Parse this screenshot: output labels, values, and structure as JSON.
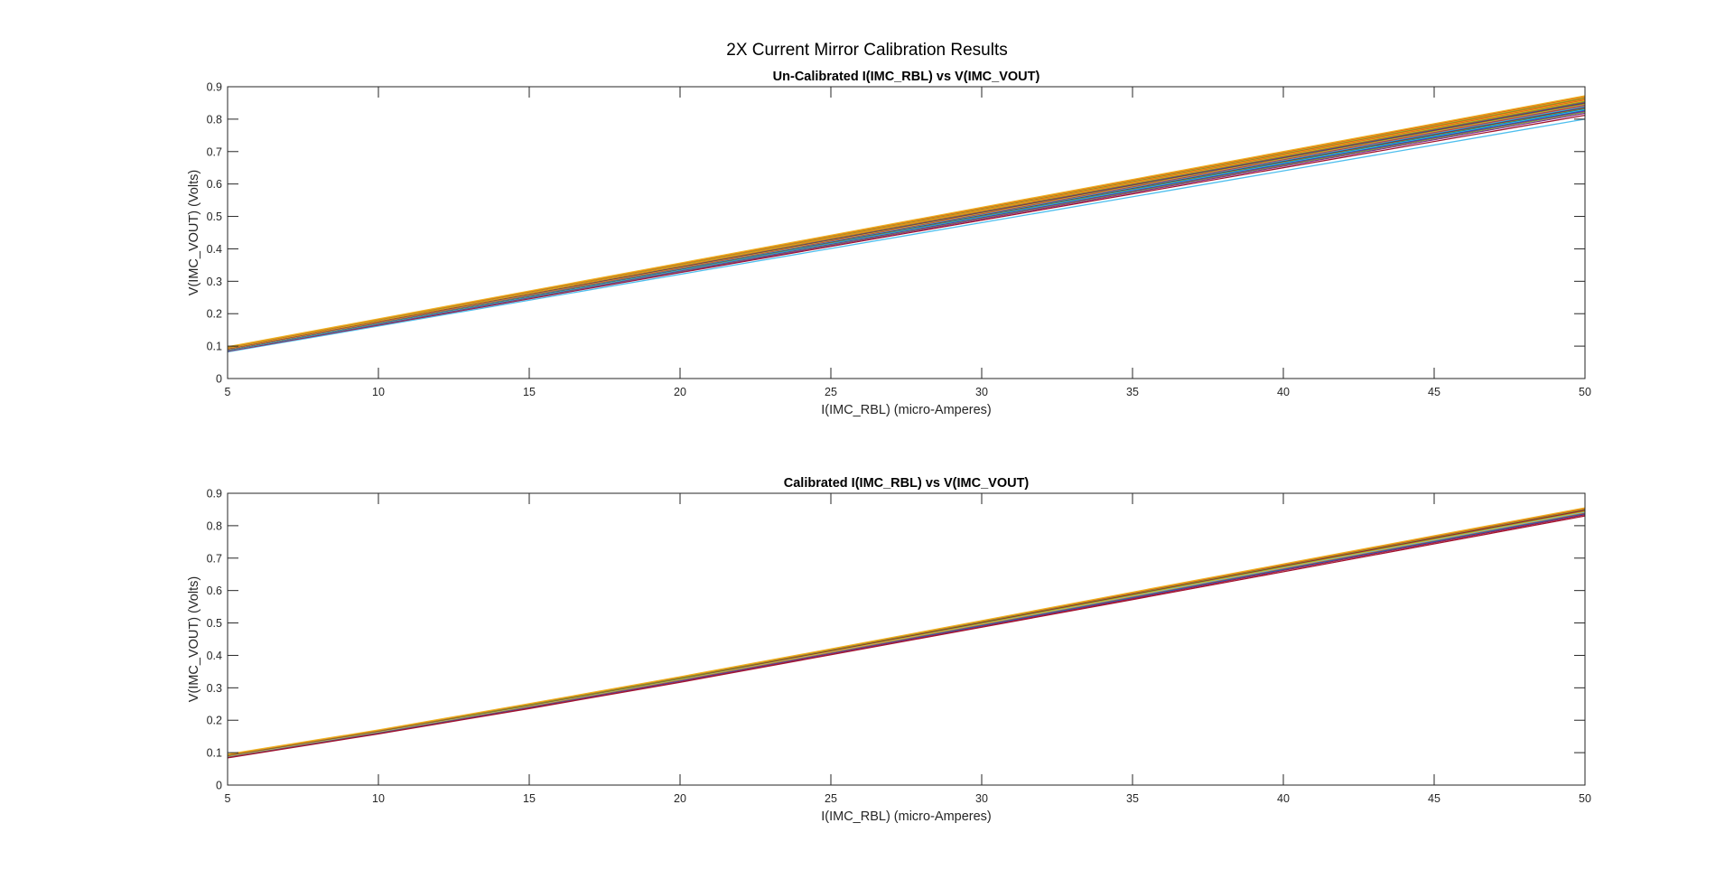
{
  "figure": {
    "title": "2X Current Mirror Calibration Results"
  },
  "series_colors": [
    "#0072BD",
    "#D95319",
    "#EDB120",
    "#7E2F8E",
    "#77AC30",
    "#4DBEEE",
    "#A2142F"
  ],
  "chart_data": [
    {
      "type": "line",
      "title": "Un-Calibrated I(IMC_RBL) vs V(IMC_VOUT)",
      "xlabel": "I(IMC_RBL) (micro-Amperes)",
      "ylabel": "V(IMC_VOUT) (Volts)",
      "xlim": [
        5,
        50
      ],
      "ylim": [
        0,
        0.9
      ],
      "xticks": [
        "5",
        "10",
        "15",
        "20",
        "25",
        "30",
        "35",
        "40",
        "45",
        "50"
      ],
      "yticks": [
        "0",
        "0.1",
        "0.2",
        "0.3",
        "0.4",
        "0.5",
        "0.6",
        "0.7",
        "0.8",
        "0.9"
      ],
      "grid": false,
      "x": [
        5,
        50
      ],
      "series": [
        {
          "values": [
            0.082,
            0.8
          ],
          "color": "#4DBEEE"
        },
        {
          "values": [
            0.084,
            0.812
          ],
          "color": "#A2142F"
        },
        {
          "values": [
            0.085,
            0.818
          ],
          "color": "#7E2F8E"
        },
        {
          "values": [
            0.086,
            0.822
          ],
          "color": "#77AC30"
        },
        {
          "values": [
            0.086,
            0.825
          ],
          "color": "#7E2F8E"
        },
        {
          "values": [
            0.087,
            0.828
          ],
          "color": "#0072BD"
        },
        {
          "values": [
            0.087,
            0.83
          ],
          "color": "#4DBEEE"
        },
        {
          "values": [
            0.088,
            0.832
          ],
          "color": "#0072BD"
        },
        {
          "values": [
            0.088,
            0.834
          ],
          "color": "#77AC30"
        },
        {
          "values": [
            0.089,
            0.836
          ],
          "color": "#A2142F"
        },
        {
          "values": [
            0.089,
            0.838
          ],
          "color": "#0072BD"
        },
        {
          "values": [
            0.09,
            0.84
          ],
          "color": "#4DBEEE"
        },
        {
          "values": [
            0.09,
            0.842
          ],
          "color": "#D95319"
        },
        {
          "values": [
            0.091,
            0.844
          ],
          "color": "#7E2F8E"
        },
        {
          "values": [
            0.091,
            0.846
          ],
          "color": "#EDB120"
        },
        {
          "values": [
            0.092,
            0.848
          ],
          "color": "#77AC30"
        },
        {
          "values": [
            0.092,
            0.85
          ],
          "color": "#A2142F"
        },
        {
          "values": [
            0.093,
            0.852
          ],
          "color": "#0072BD"
        },
        {
          "values": [
            0.093,
            0.854
          ],
          "color": "#D95319"
        },
        {
          "values": [
            0.094,
            0.856
          ],
          "color": "#77AC30"
        },
        {
          "values": [
            0.094,
            0.858
          ],
          "color": "#EDB120"
        },
        {
          "values": [
            0.095,
            0.86
          ],
          "color": "#D95319"
        },
        {
          "values": [
            0.095,
            0.862
          ],
          "color": "#EDB120"
        },
        {
          "values": [
            0.096,
            0.864
          ],
          "color": "#D95319"
        },
        {
          "values": [
            0.096,
            0.866
          ],
          "color": "#77AC30"
        },
        {
          "values": [
            0.097,
            0.868
          ],
          "color": "#EDB120"
        },
        {
          "values": [
            0.097,
            0.87
          ],
          "color": "#D95319"
        },
        {
          "values": [
            0.098,
            0.872
          ],
          "color": "#EDB120"
        }
      ]
    },
    {
      "type": "line",
      "title": "Calibrated I(IMC_RBL) vs V(IMC_VOUT)",
      "xlabel": "I(IMC_RBL) (micro-Amperes)",
      "ylabel": "V(IMC_VOUT) (Volts)",
      "xlim": [
        5,
        50
      ],
      "ylim": [
        0,
        0.9
      ],
      "xticks": [
        "5",
        "10",
        "15",
        "20",
        "25",
        "30",
        "35",
        "40",
        "45",
        "50"
      ],
      "yticks": [
        "0",
        "0.1",
        "0.2",
        "0.3",
        "0.4",
        "0.5",
        "0.6",
        "0.7",
        "0.8",
        "0.9"
      ],
      "grid": false,
      "x": [
        5,
        10,
        15,
        20,
        25,
        30,
        35,
        40,
        45,
        50
      ],
      "series": [
        {
          "values": [
            0.085,
            0.16,
            0.239,
            0.32,
            0.405,
            0.49,
            0.575,
            0.662,
            0.748,
            0.834
          ],
          "color": "#A2142F"
        },
        {
          "values": [
            0.086,
            0.161,
            0.24,
            0.321,
            0.406,
            0.491,
            0.577,
            0.664,
            0.75,
            0.836
          ],
          "color": "#7E2F8E"
        },
        {
          "values": [
            0.087,
            0.162,
            0.241,
            0.323,
            0.408,
            0.493,
            0.579,
            0.666,
            0.752,
            0.838
          ],
          "color": "#0072BD"
        },
        {
          "values": [
            0.088,
            0.163,
            0.242,
            0.324,
            0.409,
            0.495,
            0.581,
            0.668,
            0.754,
            0.84
          ],
          "color": "#D95319"
        },
        {
          "values": [
            0.089,
            0.164,
            0.244,
            0.326,
            0.411,
            0.497,
            0.583,
            0.67,
            0.756,
            0.842
          ],
          "color": "#4DBEEE"
        },
        {
          "values": [
            0.09,
            0.165,
            0.245,
            0.327,
            0.412,
            0.498,
            0.585,
            0.672,
            0.758,
            0.844
          ],
          "color": "#EDB120"
        },
        {
          "values": [
            0.091,
            0.166,
            0.246,
            0.328,
            0.414,
            0.5,
            0.587,
            0.674,
            0.76,
            0.846
          ],
          "color": "#77AC30"
        },
        {
          "values": [
            0.092,
            0.167,
            0.247,
            0.33,
            0.415,
            0.502,
            0.589,
            0.676,
            0.762,
            0.848
          ],
          "color": "#A2142F"
        },
        {
          "values": [
            0.093,
            0.168,
            0.248,
            0.331,
            0.417,
            0.504,
            0.591,
            0.678,
            0.765,
            0.851
          ],
          "color": "#77AC30"
        },
        {
          "values": [
            0.094,
            0.169,
            0.25,
            0.333,
            0.419,
            0.506,
            0.593,
            0.68,
            0.767,
            0.853
          ],
          "color": "#D95319"
        },
        {
          "values": [
            0.095,
            0.17,
            0.251,
            0.334,
            0.42,
            0.507,
            0.595,
            0.682,
            0.769,
            0.855
          ],
          "color": "#EDB120"
        },
        {
          "values": [
            0.084,
            0.158,
            0.236,
            0.317,
            0.402,
            0.487,
            0.572,
            0.658,
            0.744,
            0.83
          ],
          "color": "#A2142F"
        }
      ]
    }
  ]
}
